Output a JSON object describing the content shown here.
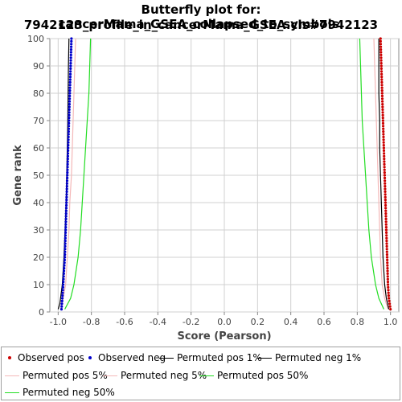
{
  "chart_data": {
    "type": "line",
    "title_line1": "Butterfly plot for: cancerMama_GSEA_collapsed_to_symbols.",
    "title_line2": "7942123_profile_in_cancerMama_GSEA.cls#7942123",
    "xlabel": "Score (Pearson)",
    "ylabel": "Gene rank",
    "xlim": [
      -1.05,
      1.05
    ],
    "ylim": [
      0,
      100
    ],
    "x_ticks": [
      "-1.0",
      "-0.8",
      "-0.6",
      "-0.4",
      "-0.2",
      "0.0",
      "0.2",
      "0.4",
      "0.6",
      "0.8",
      "1.0"
    ],
    "y_ticks": [
      "0",
      "10",
      "20",
      "30",
      "40",
      "50",
      "60",
      "70",
      "80",
      "90",
      "100"
    ],
    "grid": true,
    "legend_position": "bottom",
    "series": [
      {
        "name": "Observed pos",
        "color": "#cc0000",
        "style": "dots",
        "side": "pos",
        "points": [
          [
            1.0,
            1
          ],
          [
            0.99,
            5
          ],
          [
            0.985,
            10
          ],
          [
            0.98,
            20
          ],
          [
            0.975,
            30
          ],
          [
            0.97,
            40
          ],
          [
            0.965,
            50
          ],
          [
            0.96,
            60
          ],
          [
            0.955,
            70
          ],
          [
            0.95,
            80
          ],
          [
            0.945,
            90
          ],
          [
            0.94,
            100
          ]
        ]
      },
      {
        "name": "Observed neg",
        "color": "#0000cc",
        "style": "dots",
        "side": "neg",
        "points": [
          [
            -0.98,
            1
          ],
          [
            -0.975,
            5
          ],
          [
            -0.97,
            10
          ],
          [
            -0.96,
            20
          ],
          [
            -0.955,
            30
          ],
          [
            -0.95,
            40
          ],
          [
            -0.945,
            50
          ],
          [
            -0.94,
            60
          ],
          [
            -0.935,
            70
          ],
          [
            -0.93,
            80
          ],
          [
            -0.925,
            90
          ],
          [
            -0.92,
            100
          ]
        ]
      },
      {
        "name": "Permuted pos 1%",
        "color": "#000000",
        "style": "line",
        "side": "pos",
        "points": [
          [
            0.99,
            1
          ],
          [
            0.975,
            5
          ],
          [
            0.965,
            10
          ],
          [
            0.955,
            20
          ],
          [
            0.95,
            30
          ],
          [
            0.945,
            40
          ],
          [
            0.94,
            50
          ],
          [
            0.935,
            60
          ],
          [
            0.935,
            70
          ],
          [
            0.93,
            80
          ],
          [
            0.93,
            90
          ],
          [
            0.93,
            100
          ]
        ]
      },
      {
        "name": "Permuted neg 1%",
        "color": "#000000",
        "style": "line",
        "side": "neg",
        "points": [
          [
            -1.0,
            1
          ],
          [
            -0.99,
            3
          ],
          [
            -0.975,
            10
          ],
          [
            -0.965,
            20
          ],
          [
            -0.958,
            30
          ],
          [
            -0.952,
            40
          ],
          [
            -0.948,
            50
          ],
          [
            -0.945,
            60
          ],
          [
            -0.942,
            70
          ],
          [
            -0.94,
            80
          ],
          [
            -0.938,
            90
          ],
          [
            -0.935,
            100
          ]
        ]
      },
      {
        "name": "Permuted pos 5%",
        "color": "#f4b8b8",
        "style": "line",
        "side": "pos",
        "points": [
          [
            0.985,
            1
          ],
          [
            0.965,
            5
          ],
          [
            0.95,
            10
          ],
          [
            0.94,
            20
          ],
          [
            0.935,
            30
          ],
          [
            0.93,
            40
          ],
          [
            0.925,
            50
          ],
          [
            0.92,
            60
          ],
          [
            0.915,
            70
          ],
          [
            0.91,
            80
          ],
          [
            0.905,
            90
          ],
          [
            0.9,
            100
          ]
        ]
      },
      {
        "name": "Permuted neg 5%",
        "color": "#f4b8b8",
        "style": "line",
        "side": "neg",
        "points": [
          [
            -0.985,
            1
          ],
          [
            -0.97,
            5
          ],
          [
            -0.955,
            10
          ],
          [
            -0.945,
            20
          ],
          [
            -0.935,
            30
          ],
          [
            -0.93,
            40
          ],
          [
            -0.92,
            50
          ],
          [
            -0.915,
            60
          ],
          [
            -0.91,
            70
          ],
          [
            -0.905,
            80
          ],
          [
            -0.9,
            90
          ],
          [
            -0.895,
            100
          ]
        ]
      },
      {
        "name": "Permuted pos 50%",
        "color": "#22dd22",
        "style": "line",
        "side": "pos",
        "points": [
          [
            0.96,
            1
          ],
          [
            0.93,
            5
          ],
          [
            0.91,
            10
          ],
          [
            0.885,
            20
          ],
          [
            0.87,
            30
          ],
          [
            0.86,
            40
          ],
          [
            0.85,
            50
          ],
          [
            0.84,
            60
          ],
          [
            0.83,
            70
          ],
          [
            0.825,
            80
          ],
          [
            0.82,
            90
          ],
          [
            0.815,
            100
          ]
        ]
      },
      {
        "name": "Permuted neg 50%",
        "color": "#22dd22",
        "style": "line",
        "side": "neg",
        "points": [
          [
            -0.96,
            1
          ],
          [
            -0.925,
            5
          ],
          [
            -0.905,
            10
          ],
          [
            -0.88,
            20
          ],
          [
            -0.865,
            30
          ],
          [
            -0.855,
            40
          ],
          [
            -0.845,
            50
          ],
          [
            -0.835,
            60
          ],
          [
            -0.825,
            70
          ],
          [
            -0.815,
            80
          ],
          [
            -0.81,
            90
          ],
          [
            -0.805,
            100
          ]
        ]
      }
    ]
  },
  "legend": [
    {
      "label": "Observed pos",
      "color": "#cc0000",
      "kind": "dot"
    },
    {
      "label": "Observed neg",
      "color": "#0000cc",
      "kind": "dot"
    },
    {
      "label": "Permuted pos 1%",
      "color": "#000000",
      "kind": "line"
    },
    {
      "label": "Permuted neg 1%",
      "color": "#000000",
      "kind": "line"
    },
    {
      "label": "Permuted pos 5%",
      "color": "#f4b8b8",
      "kind": "line"
    },
    {
      "label": "Permuted neg 5%",
      "color": "#f4b8b8",
      "kind": "line"
    },
    {
      "label": "Permuted pos 50%",
      "color": "#22dd22",
      "kind": "line"
    },
    {
      "label": "Permuted neg 50%",
      "color": "#22dd22",
      "kind": "line"
    }
  ]
}
